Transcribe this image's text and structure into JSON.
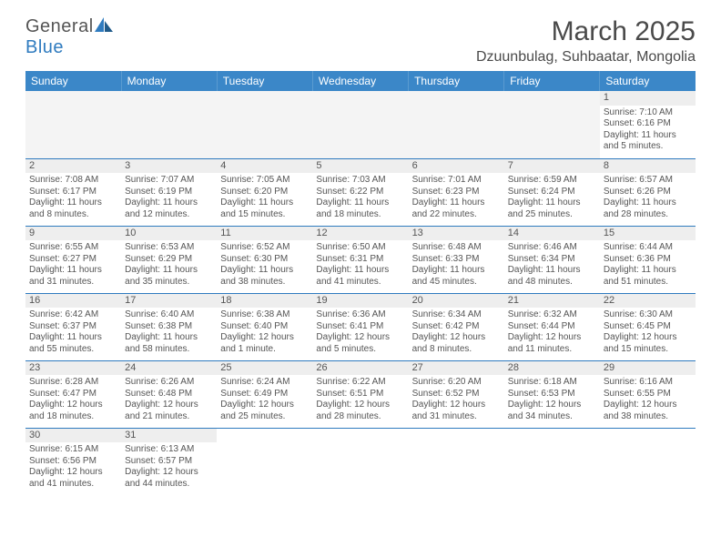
{
  "brand": {
    "name1": "General",
    "name2": "Blue"
  },
  "title": "March 2025",
  "location": "Dzuunbulag, Suhbaatar, Mongolia",
  "colors": {
    "header_bg": "#3b87c8",
    "header_text": "#ffffff",
    "border": "#2f7bbf",
    "daynum_bg": "#eeeeee",
    "text": "#555555",
    "brand_blue": "#2f7bbf"
  },
  "days_of_week": [
    "Sunday",
    "Monday",
    "Tuesday",
    "Wednesday",
    "Thursday",
    "Friday",
    "Saturday"
  ],
  "weeks": [
    [
      null,
      null,
      null,
      null,
      null,
      null,
      {
        "n": "1",
        "sr": "Sunrise: 7:10 AM",
        "ss": "Sunset: 6:16 PM",
        "dl": "Daylight: 11 hours and 5 minutes."
      }
    ],
    [
      {
        "n": "2",
        "sr": "Sunrise: 7:08 AM",
        "ss": "Sunset: 6:17 PM",
        "dl": "Daylight: 11 hours and 8 minutes."
      },
      {
        "n": "3",
        "sr": "Sunrise: 7:07 AM",
        "ss": "Sunset: 6:19 PM",
        "dl": "Daylight: 11 hours and 12 minutes."
      },
      {
        "n": "4",
        "sr": "Sunrise: 7:05 AM",
        "ss": "Sunset: 6:20 PM",
        "dl": "Daylight: 11 hours and 15 minutes."
      },
      {
        "n": "5",
        "sr": "Sunrise: 7:03 AM",
        "ss": "Sunset: 6:22 PM",
        "dl": "Daylight: 11 hours and 18 minutes."
      },
      {
        "n": "6",
        "sr": "Sunrise: 7:01 AM",
        "ss": "Sunset: 6:23 PM",
        "dl": "Daylight: 11 hours and 22 minutes."
      },
      {
        "n": "7",
        "sr": "Sunrise: 6:59 AM",
        "ss": "Sunset: 6:24 PM",
        "dl": "Daylight: 11 hours and 25 minutes."
      },
      {
        "n": "8",
        "sr": "Sunrise: 6:57 AM",
        "ss": "Sunset: 6:26 PM",
        "dl": "Daylight: 11 hours and 28 minutes."
      }
    ],
    [
      {
        "n": "9",
        "sr": "Sunrise: 6:55 AM",
        "ss": "Sunset: 6:27 PM",
        "dl": "Daylight: 11 hours and 31 minutes."
      },
      {
        "n": "10",
        "sr": "Sunrise: 6:53 AM",
        "ss": "Sunset: 6:29 PM",
        "dl": "Daylight: 11 hours and 35 minutes."
      },
      {
        "n": "11",
        "sr": "Sunrise: 6:52 AM",
        "ss": "Sunset: 6:30 PM",
        "dl": "Daylight: 11 hours and 38 minutes."
      },
      {
        "n": "12",
        "sr": "Sunrise: 6:50 AM",
        "ss": "Sunset: 6:31 PM",
        "dl": "Daylight: 11 hours and 41 minutes."
      },
      {
        "n": "13",
        "sr": "Sunrise: 6:48 AM",
        "ss": "Sunset: 6:33 PM",
        "dl": "Daylight: 11 hours and 45 minutes."
      },
      {
        "n": "14",
        "sr": "Sunrise: 6:46 AM",
        "ss": "Sunset: 6:34 PM",
        "dl": "Daylight: 11 hours and 48 minutes."
      },
      {
        "n": "15",
        "sr": "Sunrise: 6:44 AM",
        "ss": "Sunset: 6:36 PM",
        "dl": "Daylight: 11 hours and 51 minutes."
      }
    ],
    [
      {
        "n": "16",
        "sr": "Sunrise: 6:42 AM",
        "ss": "Sunset: 6:37 PM",
        "dl": "Daylight: 11 hours and 55 minutes."
      },
      {
        "n": "17",
        "sr": "Sunrise: 6:40 AM",
        "ss": "Sunset: 6:38 PM",
        "dl": "Daylight: 11 hours and 58 minutes."
      },
      {
        "n": "18",
        "sr": "Sunrise: 6:38 AM",
        "ss": "Sunset: 6:40 PM",
        "dl": "Daylight: 12 hours and 1 minute."
      },
      {
        "n": "19",
        "sr": "Sunrise: 6:36 AM",
        "ss": "Sunset: 6:41 PM",
        "dl": "Daylight: 12 hours and 5 minutes."
      },
      {
        "n": "20",
        "sr": "Sunrise: 6:34 AM",
        "ss": "Sunset: 6:42 PM",
        "dl": "Daylight: 12 hours and 8 minutes."
      },
      {
        "n": "21",
        "sr": "Sunrise: 6:32 AM",
        "ss": "Sunset: 6:44 PM",
        "dl": "Daylight: 12 hours and 11 minutes."
      },
      {
        "n": "22",
        "sr": "Sunrise: 6:30 AM",
        "ss": "Sunset: 6:45 PM",
        "dl": "Daylight: 12 hours and 15 minutes."
      }
    ],
    [
      {
        "n": "23",
        "sr": "Sunrise: 6:28 AM",
        "ss": "Sunset: 6:47 PM",
        "dl": "Daylight: 12 hours and 18 minutes."
      },
      {
        "n": "24",
        "sr": "Sunrise: 6:26 AM",
        "ss": "Sunset: 6:48 PM",
        "dl": "Daylight: 12 hours and 21 minutes."
      },
      {
        "n": "25",
        "sr": "Sunrise: 6:24 AM",
        "ss": "Sunset: 6:49 PM",
        "dl": "Daylight: 12 hours and 25 minutes."
      },
      {
        "n": "26",
        "sr": "Sunrise: 6:22 AM",
        "ss": "Sunset: 6:51 PM",
        "dl": "Daylight: 12 hours and 28 minutes."
      },
      {
        "n": "27",
        "sr": "Sunrise: 6:20 AM",
        "ss": "Sunset: 6:52 PM",
        "dl": "Daylight: 12 hours and 31 minutes."
      },
      {
        "n": "28",
        "sr": "Sunrise: 6:18 AM",
        "ss": "Sunset: 6:53 PM",
        "dl": "Daylight: 12 hours and 34 minutes."
      },
      {
        "n": "29",
        "sr": "Sunrise: 6:16 AM",
        "ss": "Sunset: 6:55 PM",
        "dl": "Daylight: 12 hours and 38 minutes."
      }
    ],
    [
      {
        "n": "30",
        "sr": "Sunrise: 6:15 AM",
        "ss": "Sunset: 6:56 PM",
        "dl": "Daylight: 12 hours and 41 minutes."
      },
      {
        "n": "31",
        "sr": "Sunrise: 6:13 AM",
        "ss": "Sunset: 6:57 PM",
        "dl": "Daylight: 12 hours and 44 minutes."
      },
      null,
      null,
      null,
      null,
      null
    ]
  ]
}
